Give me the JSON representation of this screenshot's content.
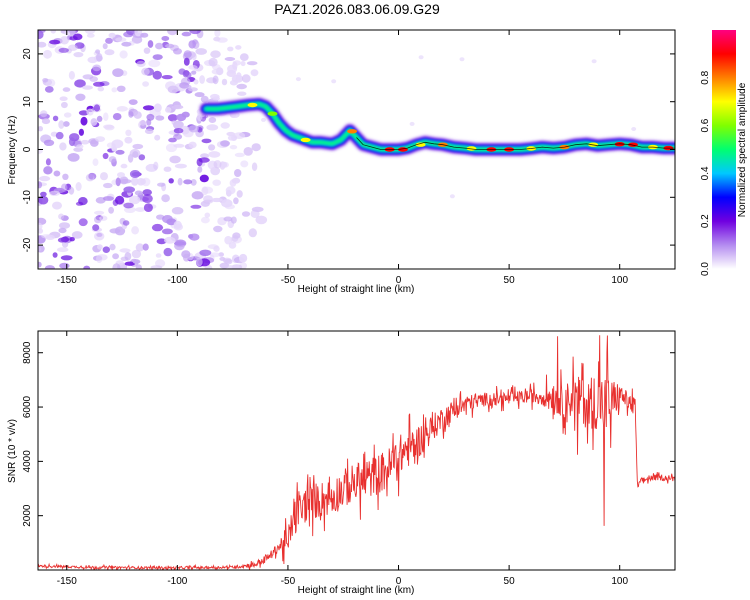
{
  "title": "PAZ1.2026.083.06.09.G29",
  "chart_data": [
    {
      "type": "heatmap",
      "xlabel": "Height of straight line (km)",
      "ylabel": "Frequency (Hz)",
      "xlim": [
        -163,
        125
      ],
      "ylim": [
        -25,
        25
      ],
      "x_ticks": [
        -150,
        -100,
        -50,
        0,
        50,
        100
      ],
      "y_ticks": [
        -20,
        -10,
        0,
        10,
        20
      ],
      "noise_region": {
        "x": [
          -163,
          -70
        ],
        "y": [
          -25,
          25
        ]
      },
      "ridge": {
        "x": [
          -87,
          -82,
          -78,
          -73,
          -68,
          -63,
          -60,
          -57,
          -54,
          -51,
          -48,
          -45,
          -42,
          -39,
          -35,
          -30,
          -26,
          -22,
          -19,
          -16,
          -12,
          -8,
          -4,
          0,
          4,
          8,
          12,
          16,
          20,
          25,
          30,
          35,
          40,
          45,
          50,
          55,
          60,
          65,
          70,
          75,
          80,
          85,
          90,
          95,
          100,
          105,
          110,
          115,
          120,
          125
        ],
        "y": [
          8.5,
          8.5,
          8.7,
          9,
          9.3,
          9.5,
          9,
          7.5,
          5.5,
          4,
          3,
          2.5,
          2,
          1.5,
          1.5,
          1.2,
          2,
          4,
          2.5,
          1,
          0.5,
          0,
          0,
          0,
          0.3,
          1,
          1.5,
          1.2,
          1,
          0.5,
          0.3,
          0,
          0,
          0,
          0,
          0,
          0.2,
          0.5,
          0.3,
          0.5,
          1,
          1.2,
          0.8,
          1,
          1.2,
          1,
          0.5,
          0.5,
          0.3,
          0.3
        ]
      },
      "colorbar": {
        "label": "Normalized spectral amplitude",
        "ticks": [
          0.0,
          0.2,
          0.4,
          0.6,
          0.8
        ],
        "tick_labels": [
          "0.0",
          "0.2",
          "0.4",
          "0.6",
          "0.8"
        ],
        "range": [
          0,
          1
        ],
        "colors": [
          "#ffffff",
          "#b48cf0",
          "#7000e0",
          "#0000ff",
          "#00c8ff",
          "#00ff70",
          "#80ff00",
          "#ffff00",
          "#ff8000",
          "#ff0000",
          "#ff0080"
        ]
      }
    },
    {
      "type": "line",
      "xlabel": "Height of straight line (km)",
      "ylabel": "SNR (10 * v/v)",
      "xlim": [
        -163,
        125
      ],
      "ylim": [
        0,
        8800
      ],
      "x_ticks": [
        -150,
        -100,
        -50,
        0,
        50,
        100
      ],
      "y_ticks": [
        2000,
        4000,
        6000,
        8000
      ],
      "color": "#e8302e",
      "envelope": {
        "x": [
          -163,
          -140,
          -100,
          -75,
          -65,
          -60,
          -57,
          -55,
          -52,
          -50,
          -48,
          -45,
          -40,
          -35,
          -30,
          -25,
          -20,
          -15,
          -10,
          -5,
          0,
          5,
          10,
          15,
          20,
          25,
          30,
          35,
          40,
          45,
          50,
          55,
          60,
          65,
          70,
          72,
          75,
          80,
          85,
          90,
          95,
          100,
          105,
          107,
          108,
          110,
          115,
          120,
          125
        ],
        "y": [
          150,
          100,
          80,
          100,
          200,
          400,
          600,
          800,
          1000,
          900,
          1800,
          2200,
          2500,
          2600,
          2700,
          3000,
          3200,
          3300,
          3500,
          3700,
          4200,
          4500,
          4800,
          5200,
          5600,
          5900,
          6100,
          6200,
          6300,
          6300,
          6300,
          6350,
          6400,
          6400,
          6400,
          6300,
          6200,
          6400,
          6100,
          6300,
          6000,
          6500,
          6100,
          6000,
          3100,
          3300,
          3400,
          3400,
          3350
        ]
      },
      "noise_amplitude": {
        "x": [
          -163,
          -75,
          -55,
          -50,
          -30,
          0,
          20,
          40,
          60,
          70,
          80,
          85,
          90,
          95,
          100,
          107,
          108,
          125
        ],
        "y": [
          60,
          60,
          250,
          900,
          1000,
          1100,
          600,
          350,
          350,
          700,
          1100,
          1300,
          1600,
          1700,
          500,
          500,
          150,
          150
        ]
      }
    }
  ]
}
